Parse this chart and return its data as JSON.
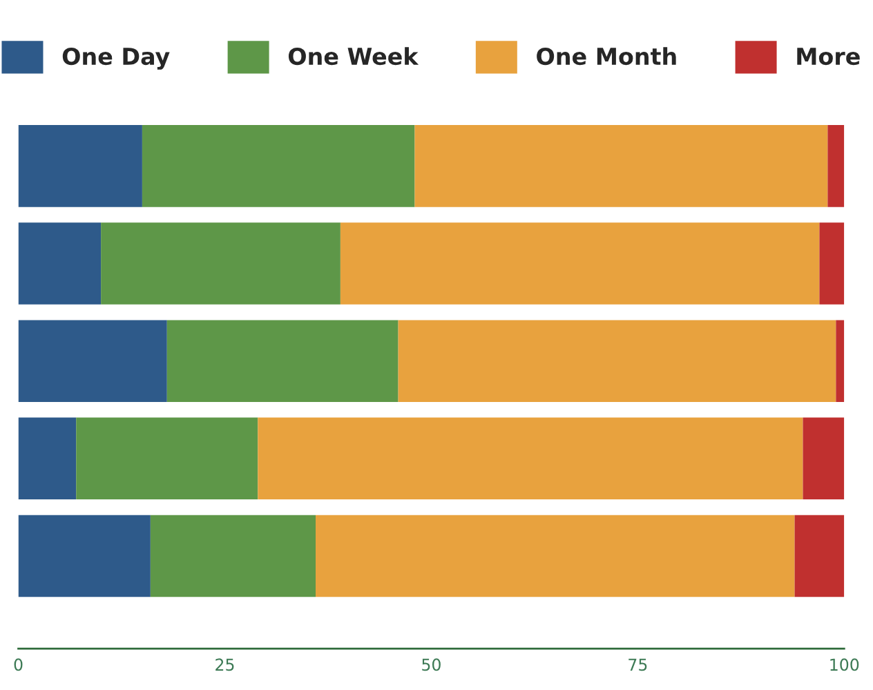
{
  "chart_data": {
    "type": "bar",
    "orientation": "horizontal",
    "stacked": true,
    "categories": [
      null,
      null,
      null,
      null,
      null
    ],
    "series": [
      {
        "name": "One Day",
        "color": "#2e5a8a",
        "values": [
          15,
          10,
          18,
          7,
          16
        ]
      },
      {
        "name": "One Week",
        "color": "#5e9748",
        "values": [
          33,
          29,
          28,
          22,
          20
        ]
      },
      {
        "name": "One Month",
        "color": "#e8a23e",
        "values": [
          50,
          58,
          53,
          66,
          58
        ]
      },
      {
        "name": "More",
        "color": "#c0302f",
        "values": [
          2,
          3,
          1,
          5,
          6
        ]
      }
    ],
    "xlim": [
      0,
      100
    ],
    "xticks": [
      0,
      25,
      50,
      75,
      100
    ],
    "grid": false,
    "legend": "top",
    "tick_labels": "x"
  }
}
